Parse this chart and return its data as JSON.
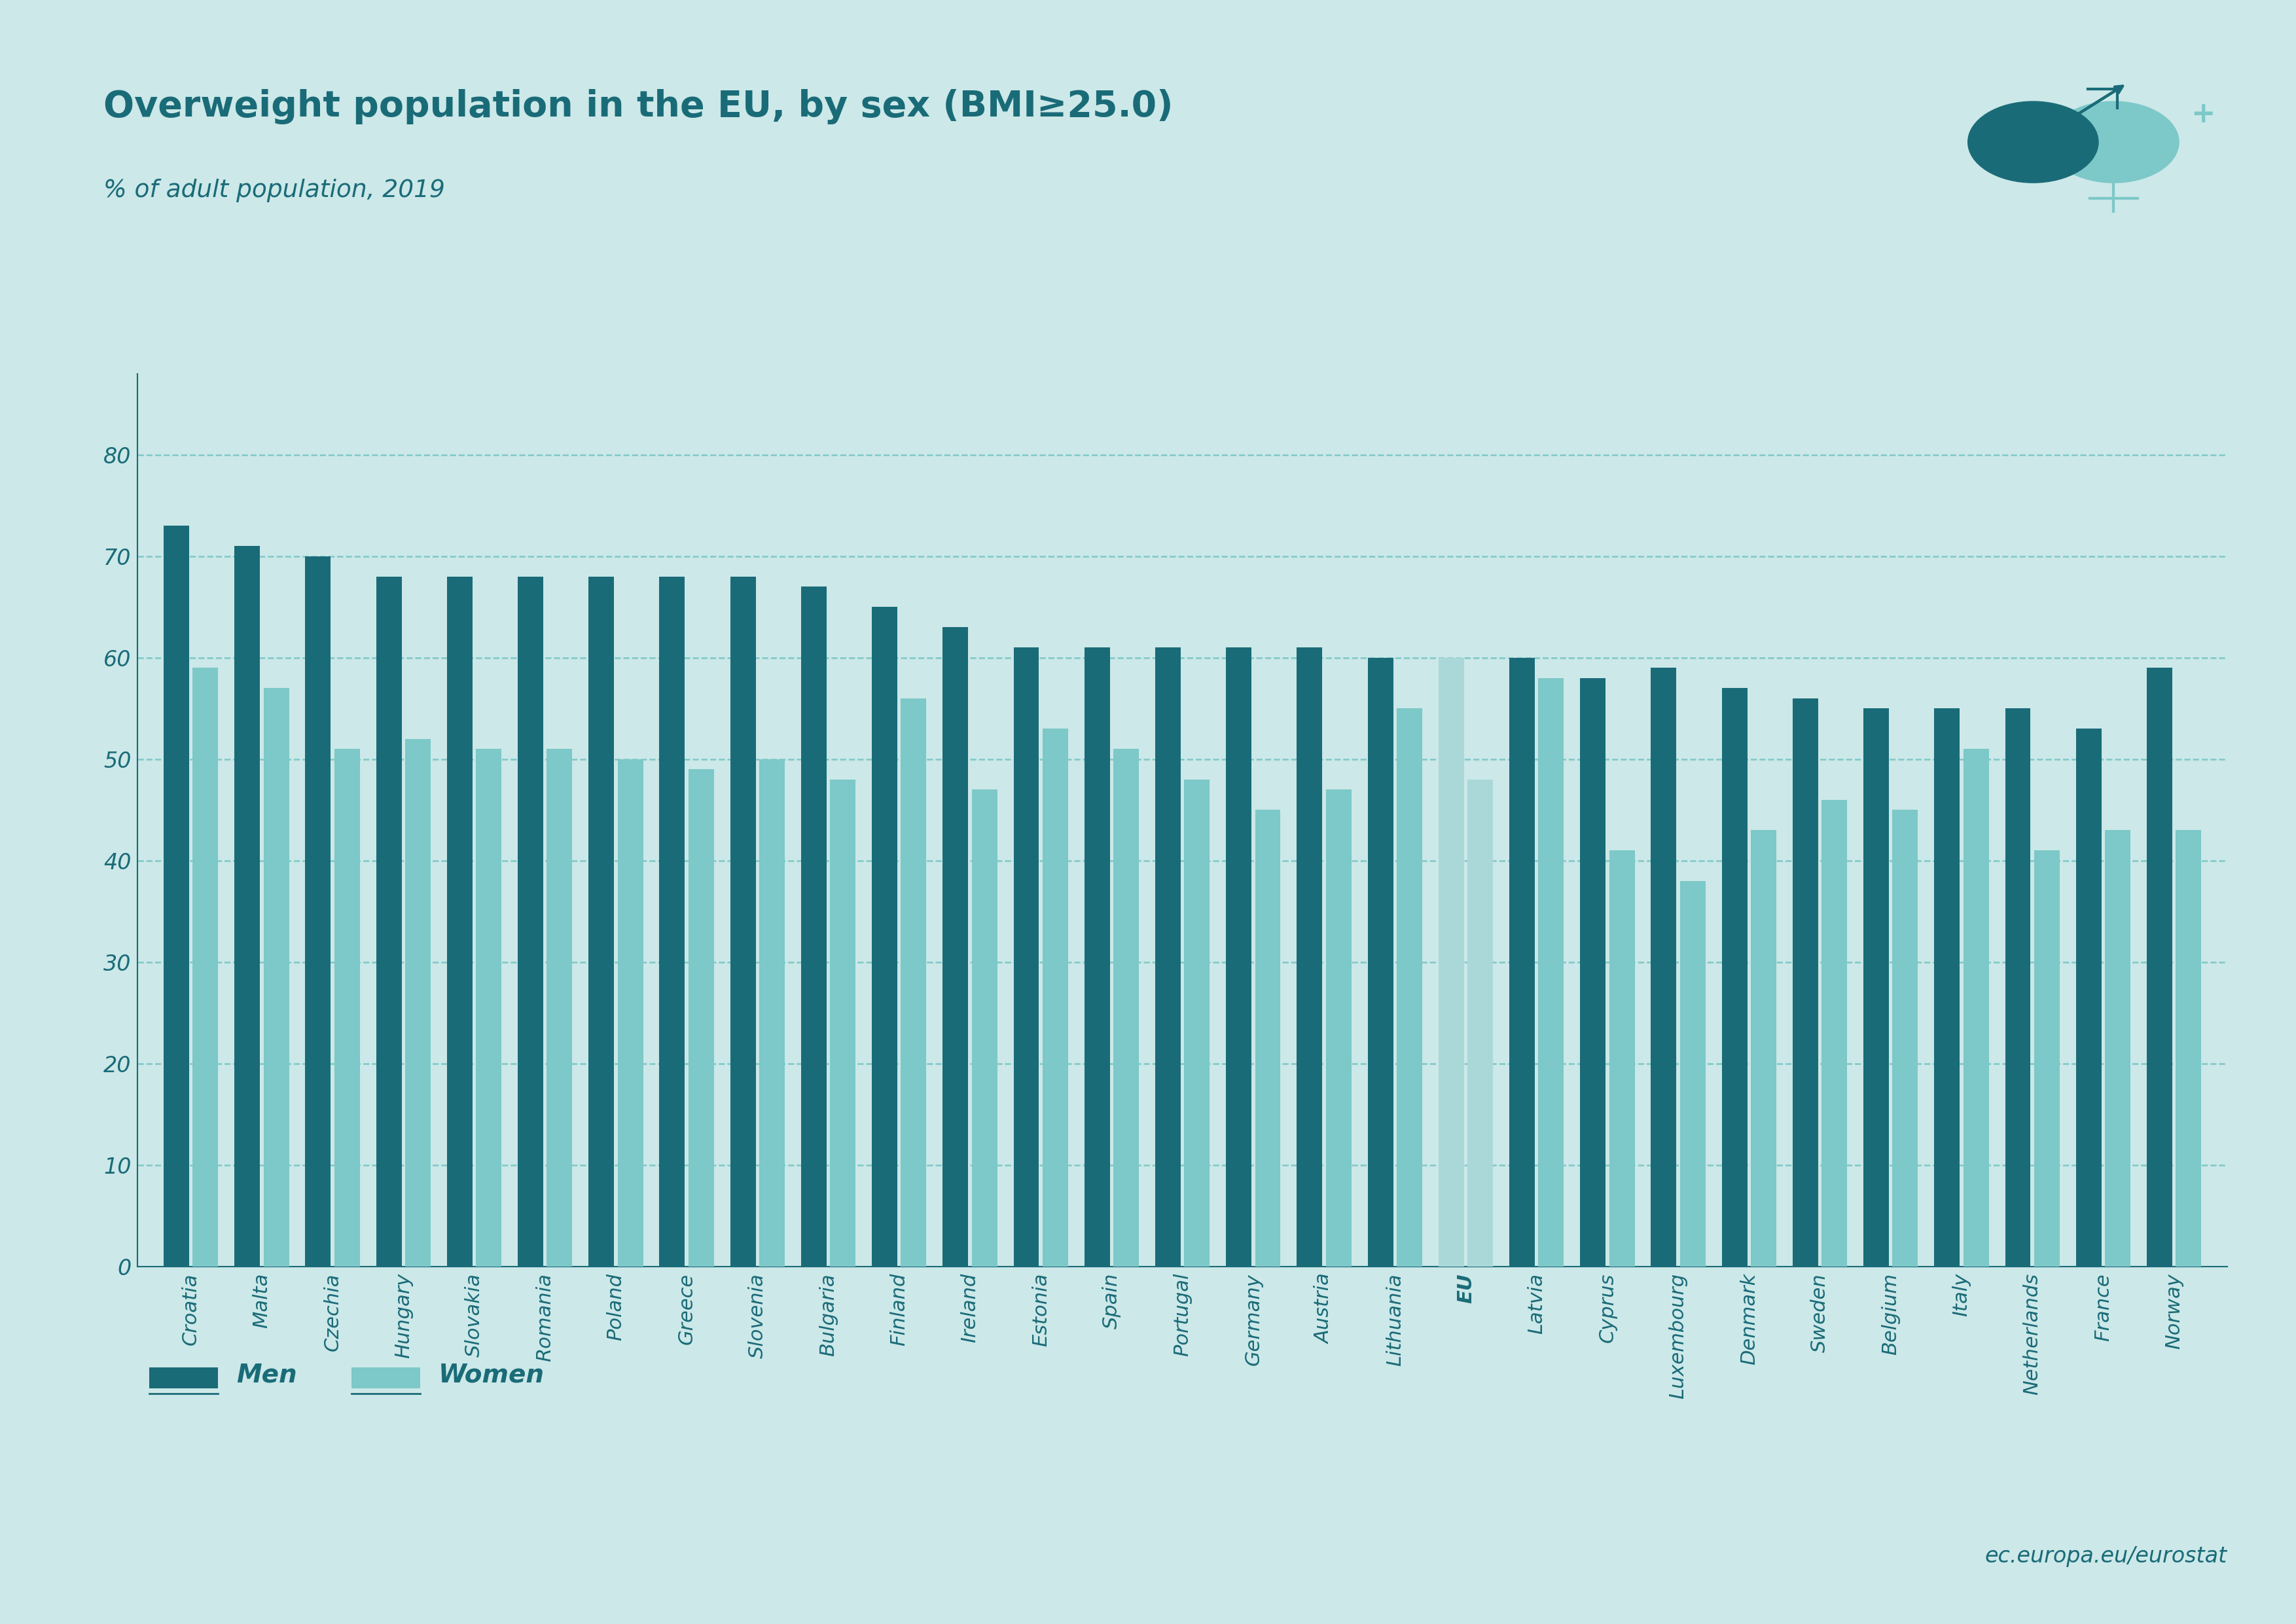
{
  "title": "Overweight population in the EU, by sex (BMI≥25.0)",
  "subtitle": "% of adult population, 2019",
  "background_color": "#cce8e8",
  "bar_color_men": "#1a6b78",
  "bar_color_women": "#7dc8c8",
  "bar_color_eu": "#aad8d8",
  "title_color": "#1a6b78",
  "subtitle_color": "#1a6b78",
  "axis_color": "#1a6b78",
  "grid_color": "#7fc8c8",
  "legend_text_color": "#1a6b78",
  "countries": [
    "Croatia",
    "Malta",
    "Czechia",
    "Hungary",
    "Slovakia",
    "Romania",
    "Poland",
    "Greece",
    "Slovenia",
    "Bulgaria",
    "Finland",
    "Ireland",
    "Estonia",
    "Spain",
    "Portugal",
    "Germany",
    "Austria",
    "Lithuania",
    "EU",
    "Latvia",
    "Cyprus",
    "Luxembourg",
    "Denmark",
    "Sweden",
    "Belgium",
    "Italy",
    "Netherlands",
    "France",
    "Norway"
  ],
  "men": [
    73,
    71,
    70,
    68,
    68,
    68,
    68,
    68,
    68,
    67,
    65,
    63,
    61,
    61,
    61,
    61,
    61,
    60,
    60,
    60,
    58,
    59,
    57,
    56,
    55,
    55,
    55,
    53,
    59
  ],
  "women": [
    59,
    57,
    51,
    52,
    51,
    51,
    50,
    49,
    50,
    48,
    56,
    47,
    53,
    51,
    48,
    45,
    47,
    55,
    48,
    58,
    41,
    38,
    43,
    46,
    45,
    51,
    41,
    43,
    43
  ],
  "eu_index": 18,
  "ylim": [
    0,
    88
  ],
  "yticks": [
    0,
    10,
    20,
    30,
    40,
    50,
    60,
    70,
    80
  ],
  "watermark": "ec.europa.eu/eurostat"
}
